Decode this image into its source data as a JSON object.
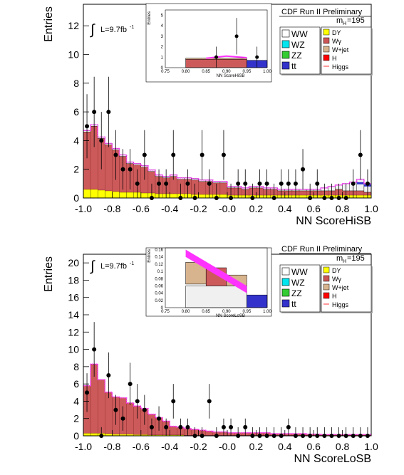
{
  "chart_data": [
    {
      "type": "bar",
      "panel": "top",
      "ylabel": "Entries",
      "xlabel": "NN ScoreHiSB",
      "header": "CDF Run II Preliminary",
      "mass_label_main": "m",
      "mass_label_sub": "H",
      "mass_label_value": "=195",
      "lumi_label": "L=9.7fb",
      "lumi_sup": "-1",
      "xlim": [
        -1.0,
        1.0
      ],
      "ylim": [
        0,
        13.5
      ],
      "xticks": [
        "-1.0",
        "-0.8",
        "-0.6",
        "-0.4",
        "-0.2",
        "-0.0",
        "0.2",
        "0.4",
        "0.6",
        "0.8",
        "1.0"
      ],
      "yticks": [
        "0",
        "2",
        "4",
        "6",
        "8",
        "10",
        "12"
      ],
      "legend_col1": [
        "WW",
        "WZ",
        "ZZ",
        "tt"
      ],
      "legend_col2": [
        "DY",
        "Wγ",
        "W+jet",
        "H",
        "Higgs"
      ],
      "legend_colors": {
        "WW": "#ffffff",
        "WZ": "#00e5ee",
        "ZZ": "#33cc33",
        "tt": "#3333cc",
        "DY": "#ffff00",
        "Wg": "#cc5555",
        "Wjet": "#d8b48e",
        "H": "#ff0000",
        "Higgs": "#ff3333"
      },
      "bins_x": [
        -1.0,
        -0.95,
        -0.9,
        -0.85,
        -0.8,
        -0.75,
        -0.7,
        -0.65,
        -0.6,
        -0.55,
        -0.5,
        -0.45,
        -0.4,
        -0.35,
        -0.3,
        -0.25,
        -0.2,
        -0.15,
        -0.1,
        -0.05,
        0.0,
        0.05,
        0.1,
        0.15,
        0.2,
        0.25,
        0.3,
        0.35,
        0.4,
        0.45,
        0.5,
        0.55,
        0.6,
        0.65,
        0.7,
        0.75,
        0.8,
        0.85,
        0.9,
        0.95
      ],
      "stack_DY": [
        0.6,
        0.6,
        0.55,
        0.5,
        0.45,
        0.4,
        0.4,
        0.4,
        0.35,
        0.35,
        0.3,
        0.3,
        0.3,
        0.3,
        0.3,
        0.25,
        0.25,
        0.25,
        0.25,
        0.25,
        0.2,
        0.2,
        0.2,
        0.2,
        0.2,
        0.2,
        0.2,
        0.2,
        0.2,
        0.2,
        0.2,
        0.2,
        0.2,
        0.2,
        0.2,
        0.2,
        0.2,
        0.2,
        0.2,
        0.2
      ],
      "stack_Wg": [
        4.0,
        4.4,
        3.6,
        3.2,
        2.9,
        2.5,
        2.0,
        1.9,
        1.8,
        1.5,
        1.2,
        1.1,
        1.2,
        1.0,
        1.0,
        1.0,
        0.9,
        0.9,
        0.8,
        0.8,
        0.5,
        0.5,
        0.4,
        0.5,
        0.5,
        0.4,
        0.4,
        0.3,
        0.3,
        0.3,
        0.3,
        0.3,
        0.3,
        0.3,
        0.3,
        0.4,
        0.3,
        0.3,
        0.3,
        0.2
      ],
      "stack_WW": [
        0.1,
        0.1,
        0.1,
        0.1,
        0.1,
        0.1,
        0.1,
        0.1,
        0.1,
        0.1,
        0.1,
        0.1,
        0.1,
        0.1,
        0.1,
        0.1,
        0.1,
        0.1,
        0.1,
        0.1,
        0.1,
        0.1,
        0.1,
        0.1,
        0.1,
        0.1,
        0.1,
        0.1,
        0.1,
        0.1,
        0.1,
        0.1,
        0.1,
        0.2,
        0.3,
        0.3,
        0.5,
        0.6,
        0.8,
        0.6
      ],
      "data_x": [
        -0.975,
        -0.925,
        -0.875,
        -0.825,
        -0.775,
        -0.725,
        -0.675,
        -0.625,
        -0.575,
        -0.525,
        -0.475,
        -0.425,
        -0.375,
        -0.325,
        -0.275,
        -0.225,
        -0.175,
        -0.125,
        -0.075,
        -0.025,
        0.025,
        0.075,
        0.125,
        0.175,
        0.225,
        0.275,
        0.325,
        0.375,
        0.425,
        0.475,
        0.525,
        0.575,
        0.625,
        0.675,
        0.725,
        0.775,
        0.825,
        0.875,
        0.925,
        0.975
      ],
      "data_y": [
        5,
        6,
        4,
        6,
        3,
        2,
        2,
        1,
        3,
        0,
        1,
        1,
        3,
        0,
        1,
        0,
        3,
        1,
        0,
        3,
        0,
        1,
        1,
        0,
        1,
        1,
        0,
        1,
        1,
        1,
        2,
        0,
        1,
        0,
        0,
        0,
        0,
        1,
        3,
        1
      ],
      "inset": {
        "xlabel": "NN ScoreHiSB",
        "ylabel": "Entries",
        "xlim": [
          0.75,
          1.0
        ],
        "ylim": [
          0,
          5.5
        ],
        "xticks": [
          "0.75",
          "0.80",
          "0.85",
          "0.90",
          "0.95",
          "1.00"
        ],
        "yticks": [
          "0",
          "1",
          "2",
          "3",
          "4",
          "5"
        ],
        "data_x": [
          0.825,
          0.875,
          0.925,
          0.975
        ],
        "data_y": [
          0,
          1,
          3,
          1
        ]
      }
    },
    {
      "type": "bar",
      "panel": "bottom",
      "ylabel": "Entries",
      "xlabel": "NN ScoreLoSB",
      "header": "CDF Run II Preliminary",
      "mass_label_main": "m",
      "mass_label_sub": "H",
      "mass_label_value": "=195",
      "lumi_label": "L=9.7fb",
      "lumi_sup": "-1",
      "xlim": [
        -1.0,
        1.0
      ],
      "ylim": [
        0,
        21
      ],
      "xticks": [
        "-1.0",
        "-0.8",
        "-0.6",
        "-0.4",
        "-0.2",
        "-0.0",
        "0.2",
        "0.4",
        "0.6",
        "0.8",
        "1.0"
      ],
      "yticks": [
        "0",
        "2",
        "4",
        "6",
        "8",
        "10",
        "12",
        "14",
        "16",
        "18",
        "20"
      ],
      "legend_col1": [
        "WW",
        "WZ",
        "ZZ",
        "tt"
      ],
      "legend_col2": [
        "DY",
        "Wγ",
        "W+jet",
        "H",
        "Higgs"
      ],
      "bins_x": [
        -1.0,
        -0.95,
        -0.9,
        -0.85,
        -0.8,
        -0.75,
        -0.7,
        -0.65,
        -0.6,
        -0.55,
        -0.5,
        -0.45,
        -0.4,
        -0.35,
        -0.3,
        -0.25,
        -0.2,
        -0.15,
        -0.1,
        -0.05,
        0.0,
        0.05,
        0.1,
        0.15,
        0.2,
        0.25,
        0.3,
        0.35,
        0.4,
        0.45,
        0.5,
        0.55,
        0.6,
        0.65,
        0.7,
        0.75,
        0.8,
        0.85,
        0.9,
        0.95
      ],
      "stack_DY": [
        0.3,
        0.3,
        0.3,
        0.25,
        0.2,
        0.2,
        0.2,
        0.15,
        0.15,
        0.1,
        0.1,
        0.1,
        0.1,
        0.1,
        0.05,
        0.05,
        0.05,
        0.05,
        0.05,
        0.05,
        0.05,
        0.05,
        0.05,
        0.05,
        0.05,
        0.05,
        0.05,
        0.05,
        0.05,
        0.05,
        0.05,
        0.05,
        0.05,
        0.05,
        0.05,
        0.05,
        0.05,
        0.05,
        0.05,
        0.05
      ],
      "stack_Wg": [
        5.5,
        8.0,
        6.2,
        4.8,
        4.3,
        4.2,
        3.6,
        3.3,
        3.0,
        2.4,
        2.0,
        1.6,
        1.0,
        0.9,
        0.8,
        0.7,
        0.6,
        0.5,
        0.4,
        0.4,
        0.3,
        0.3,
        0.3,
        0.3,
        0.3,
        0.3,
        0.2,
        0.2,
        0.2,
        0.2,
        0.2,
        0.15,
        0.15,
        0.1,
        0.1,
        0.1,
        0.1,
        0.1,
        0.1,
        0.1
      ],
      "data_x": [
        -0.975,
        -0.925,
        -0.875,
        -0.825,
        -0.775,
        -0.725,
        -0.675,
        -0.625,
        -0.575,
        -0.525,
        -0.475,
        -0.425,
        -0.375,
        -0.325,
        -0.275,
        -0.225,
        -0.175,
        -0.125,
        -0.075,
        -0.025,
        0.025,
        0.075,
        0.125,
        0.175,
        0.225,
        0.275,
        0.325,
        0.375,
        0.425,
        0.475,
        0.525,
        0.575,
        0.625,
        0.675,
        0.725,
        0.775,
        0.825,
        0.875,
        0.925,
        0.975
      ],
      "data_y": [
        5,
        10,
        0,
        7,
        3,
        2,
        6,
        4,
        3,
        1,
        2,
        1,
        4,
        1,
        1,
        0,
        0,
        4,
        0,
        1,
        1,
        0,
        1,
        0,
        0,
        0,
        0,
        0,
        1,
        0,
        0,
        0,
        0,
        0,
        0,
        0,
        0,
        0,
        0,
        0
      ],
      "inset": {
        "xlabel": "NN ScoreLoSB",
        "ylabel": "Entries",
        "xlim": [
          0.75,
          1.0
        ],
        "ylim": [
          0,
          0.165
        ],
        "xticks": [
          "0.75",
          "0.80",
          "0.85",
          "0.90",
          "0.95",
          "1.00"
        ],
        "yticks": [
          "0",
          "0.02",
          "0.04",
          "0.06",
          "0.08",
          "0.1",
          "0.12",
          "0.14",
          "0.16"
        ]
      }
    }
  ]
}
